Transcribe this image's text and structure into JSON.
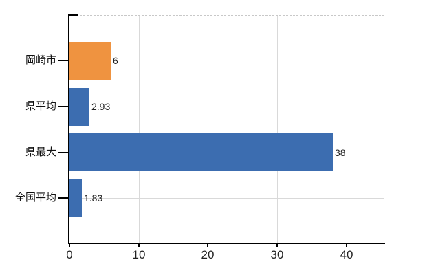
{
  "chart_data": {
    "type": "bar",
    "orientation": "horizontal",
    "title": "",
    "categories": [
      "岡崎市",
      "県平均",
      "県最大",
      "全国平均"
    ],
    "values": [
      6,
      2.93,
      38,
      1.83
    ],
    "value_labels": [
      "6",
      "2.93",
      "38",
      "1.83"
    ],
    "series": [
      {
        "name": "岡崎市",
        "values": [
          6
        ]
      },
      {
        "name": "県平均",
        "values": [
          2.93
        ]
      },
      {
        "name": "県最大",
        "values": [
          38
        ]
      },
      {
        "name": "全国平均",
        "values": [
          1.83
        ]
      }
    ],
    "bar_colors": [
      "#ef9340",
      "#3c6db0",
      "#3c6db0",
      "#3c6db0"
    ],
    "x_ticks": [
      {
        "label": "0",
        "value": 0
      },
      {
        "label": "10",
        "value": 10
      },
      {
        "label": "20",
        "value": 20
      },
      {
        "label": "30",
        "value": 30
      },
      {
        "label": "40",
        "value": 40
      }
    ],
    "xlim": [
      0,
      45.5
    ],
    "xlabel": "",
    "ylabel": "",
    "grid": true,
    "legend": false,
    "colors": {
      "axis": "#000000",
      "grid": "#d9d9d9",
      "top_border": "#c8c8c8",
      "text": "#222222",
      "background": "#ffffff"
    }
  }
}
